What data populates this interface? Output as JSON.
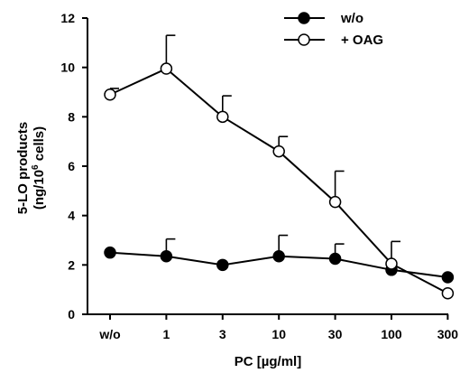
{
  "chart_data": {
    "type": "line",
    "categories": [
      "w/o",
      "1",
      "3",
      "10",
      "30",
      "100",
      "300"
    ],
    "xlabel": "PC [µg/ml]",
    "ylabel_line1": "5-LO products",
    "ylabel_line2_pre": "(ng/10",
    "ylabel_line2_sup": "6",
    "ylabel_line2_post": " cells)",
    "ylim": [
      0,
      12
    ],
    "yticks": [
      "0",
      "2",
      "4",
      "6",
      "8",
      "10",
      "12"
    ],
    "legend_position": "top-right",
    "series": [
      {
        "name": "w/o",
        "marker": "filled-circle",
        "values": [
          2.5,
          2.35,
          2.0,
          2.35,
          2.25,
          1.8,
          1.5
        ],
        "error_upper": [
          0,
          0.7,
          0,
          0.85,
          0.6,
          0,
          0
        ]
      },
      {
        "name": "+ OAG",
        "marker": "open-circle",
        "values": [
          8.9,
          9.95,
          8.0,
          6.6,
          4.55,
          2.05,
          0.85
        ],
        "error_upper": [
          0.25,
          1.35,
          0.85,
          0.6,
          1.25,
          0.9,
          0
        ]
      }
    ]
  }
}
